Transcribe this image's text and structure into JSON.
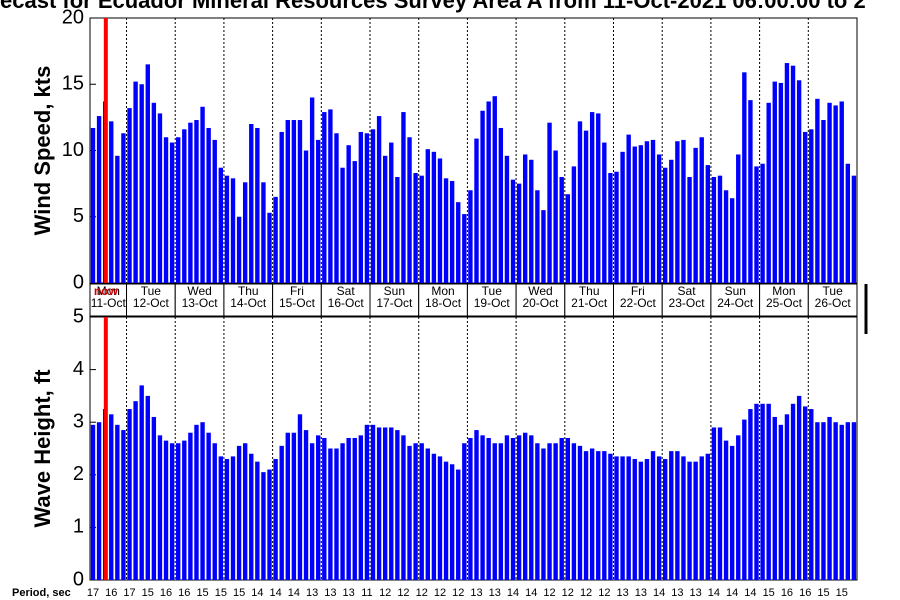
{
  "title": "ecast for Ecuador Mineral Resources Survey Area A from 11-Oct-2021 06:00:00 to 2",
  "now_label": "now",
  "days": [
    {
      "name": "Mon",
      "date": "11-Oct"
    },
    {
      "name": "Tue",
      "date": "12-Oct"
    },
    {
      "name": "Wed",
      "date": "13-Oct"
    },
    {
      "name": "Thu",
      "date": "14-Oct"
    },
    {
      "name": "Fri",
      "date": "15-Oct"
    },
    {
      "name": "Sat",
      "date": "16-Oct"
    },
    {
      "name": "Sun",
      "date": "17-Oct"
    },
    {
      "name": "Mon",
      "date": "18-Oct"
    },
    {
      "name": "Tue",
      "date": "19-Oct"
    },
    {
      "name": "Wed",
      "date": "20-Oct"
    },
    {
      "name": "Thu",
      "date": "21-Oct"
    },
    {
      "name": "Fri",
      "date": "22-Oct"
    },
    {
      "name": "Sat",
      "date": "23-Oct"
    },
    {
      "name": "Sun",
      "date": "24-Oct"
    },
    {
      "name": "Mon",
      "date": "25-Oct"
    },
    {
      "name": "Tue",
      "date": "26-Oct"
    }
  ],
  "period": {
    "label": "Period, sec",
    "values": [
      17,
      16,
      17,
      15,
      16,
      16,
      15,
      15,
      15,
      14,
      14,
      14,
      13,
      13,
      13,
      11,
      12,
      12,
      12,
      12,
      12,
      13,
      13,
      14,
      14,
      12,
      12,
      12,
      12,
      13,
      13,
      14,
      13,
      13,
      14,
      14,
      14,
      15,
      16,
      16,
      15,
      15
    ]
  },
  "chart_data": [
    {
      "type": "bar",
      "ylabel": "Wind Speed, kts",
      "color": "#0000ff",
      "ylim": [
        0,
        20
      ],
      "yticks": [
        0,
        5,
        10,
        15,
        20
      ],
      "values": [
        11.7,
        12.6,
        13.7,
        12.2,
        9.6,
        11.3,
        13.2,
        15.2,
        15.0,
        16.5,
        13.6,
        12.8,
        11.0,
        10.6,
        11.0,
        11.6,
        12.1,
        12.3,
        13.3,
        11.7,
        10.8,
        8.7,
        8.1,
        7.9,
        5.0,
        7.6,
        12.0,
        11.7,
        7.6,
        5.3,
        6.5,
        11.4,
        12.3,
        12.3,
        12.3,
        10.0,
        14.0,
        10.8,
        12.9,
        13.1,
        11.3,
        8.7,
        10.4,
        9.2,
        11.4,
        11.3,
        11.6,
        12.6,
        9.6,
        10.6,
        8.0,
        12.9,
        11.0,
        8.3,
        8.1,
        10.1,
        9.9,
        9.4,
        7.9,
        7.7,
        6.1,
        5.2,
        7.0,
        10.9,
        13.0,
        13.7,
        14.1,
        11.7,
        9.6,
        7.8,
        7.5,
        9.7,
        9.3,
        7.0,
        5.5,
        12.1,
        10.0,
        8.0,
        6.7,
        8.8,
        12.2,
        11.5,
        12.9,
        12.8,
        10.6,
        8.3,
        8.4,
        9.9,
        11.2,
        10.3,
        10.4,
        10.7,
        10.8,
        9.7,
        8.7,
        9.3,
        10.7,
        10.8,
        8.0,
        10.2,
        11.0,
        8.9,
        8.0,
        8.1,
        7.0,
        6.4,
        9.7,
        15.9,
        13.8,
        8.8,
        9.0,
        13.6,
        15.2,
        15.1,
        16.6,
        16.4,
        15.3,
        11.4,
        11.6,
        13.9,
        12.3,
        13.6,
        13.4,
        13.7,
        9.0,
        8.1
      ]
    },
    {
      "type": "bar",
      "ylabel": "Wave Height, ft",
      "color": "#0000ff",
      "ylim": [
        0,
        5
      ],
      "yticks": [
        0,
        1,
        2,
        3,
        4,
        5
      ],
      "values": [
        2.95,
        3.0,
        3.25,
        3.15,
        2.95,
        2.85,
        3.25,
        3.4,
        3.7,
        3.5,
        3.1,
        2.75,
        2.65,
        2.6,
        2.6,
        2.65,
        2.8,
        2.95,
        3.0,
        2.8,
        2.6,
        2.35,
        2.3,
        2.35,
        2.55,
        2.6,
        2.4,
        2.25,
        2.05,
        2.1,
        2.3,
        2.55,
        2.8,
        2.8,
        3.15,
        2.85,
        2.6,
        2.75,
        2.7,
        2.5,
        2.5,
        2.6,
        2.7,
        2.7,
        2.75,
        2.95,
        2.95,
        2.9,
        2.9,
        2.9,
        2.85,
        2.75,
        2.55,
        2.6,
        2.6,
        2.5,
        2.4,
        2.35,
        2.25,
        2.2,
        2.1,
        2.6,
        2.7,
        2.85,
        2.75,
        2.7,
        2.6,
        2.6,
        2.75,
        2.7,
        2.75,
        2.8,
        2.75,
        2.6,
        2.5,
        2.6,
        2.6,
        2.7,
        2.7,
        2.6,
        2.55,
        2.45,
        2.5,
        2.45,
        2.45,
        2.4,
        2.35,
        2.35,
        2.35,
        2.3,
        2.25,
        2.3,
        2.45,
        2.35,
        2.3,
        2.45,
        2.45,
        2.35,
        2.25,
        2.25,
        2.35,
        2.4,
        2.9,
        2.9,
        2.65,
        2.55,
        2.75,
        3.05,
        3.25,
        3.35,
        3.35,
        3.35,
        3.1,
        2.95,
        3.15,
        3.35,
        3.5,
        3.3,
        3.25,
        3.0,
        3.0,
        3.1,
        3.0,
        2.95,
        3.0,
        3.0
      ]
    }
  ]
}
